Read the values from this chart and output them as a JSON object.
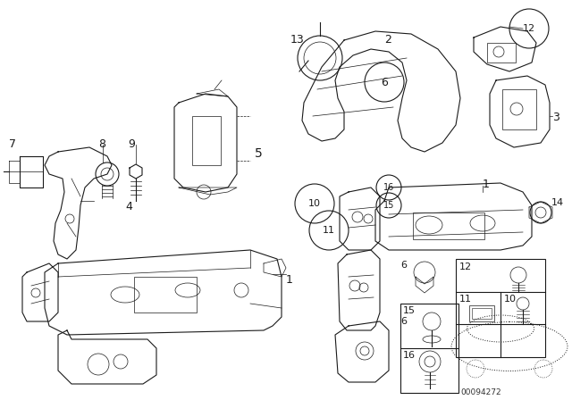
{
  "bg_color": "#ffffff",
  "line_color": "#1a1a1a",
  "diagram_id": "00094272",
  "figsize": [
    6.4,
    4.48
  ],
  "dpi": 100
}
